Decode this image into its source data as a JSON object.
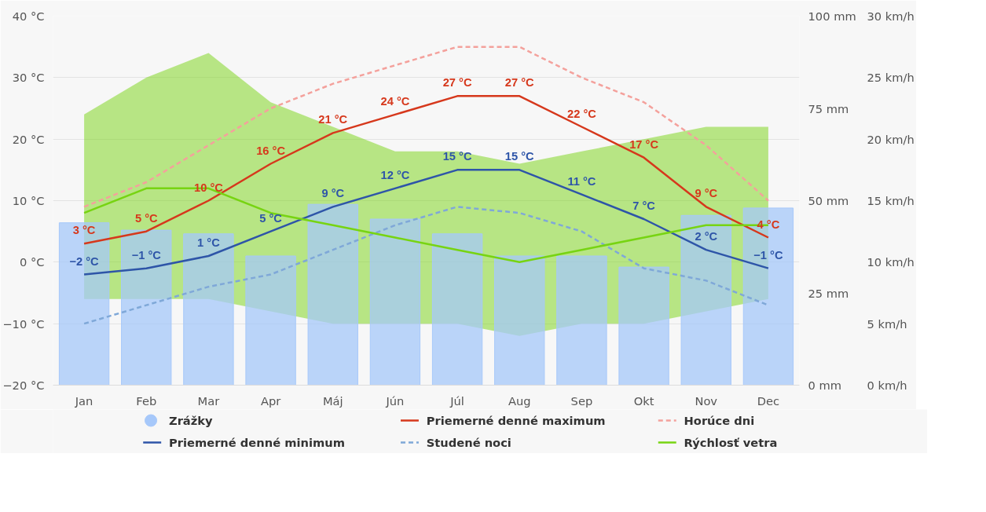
{
  "chart_data": {
    "type": "line",
    "categories": [
      "Jan",
      "Feb",
      "Mar",
      "Apr",
      "Máj",
      "Jún",
      "Júl",
      "Aug",
      "Sep",
      "Okt",
      "Nov",
      "Dec"
    ],
    "ylim": [
      -20,
      40
    ],
    "yticks": [
      {
        "value": -20,
        "label": "−20 °C"
      },
      {
        "value": -10,
        "label": "−10 °C"
      },
      {
        "value": 0,
        "label": "0 °C"
      },
      {
        "value": 10,
        "label": "10 °C"
      },
      {
        "value": 20,
        "label": "20 °C"
      },
      {
        "value": 30,
        "label": "30 °C"
      },
      {
        "value": 40,
        "label": "40 °C"
      }
    ],
    "y2lim": [
      0,
      100
    ],
    "y2ticks": [
      {
        "value": 0,
        "label": "0 mm"
      },
      {
        "value": 25,
        "label": "25 mm"
      },
      {
        "value": 50,
        "label": "50 mm"
      },
      {
        "value": 75,
        "label": "75 mm"
      },
      {
        "value": 100,
        "label": "100 mm"
      }
    ],
    "y3lim": [
      0,
      30
    ],
    "y3ticks": [
      {
        "value": 0,
        "label": "0 km/h"
      },
      {
        "value": 5,
        "label": "5 km/h"
      },
      {
        "value": 10,
        "label": "10 km/h"
      },
      {
        "value": 15,
        "label": "15 km/h"
      },
      {
        "value": 20,
        "label": "20 km/h"
      },
      {
        "value": 25,
        "label": "25 km/h"
      },
      {
        "value": 30,
        "label": "30 km/h"
      }
    ],
    "grid": "y",
    "legend": "bottom",
    "series": [
      {
        "name": "Zrážky",
        "type": "bar",
        "axis": "y2",
        "color": "#a6c8fa",
        "values": [
          44,
          42,
          41,
          35,
          49,
          45,
          41,
          35,
          35,
          32,
          46,
          48
        ]
      },
      {
        "name": "Priemerné denné maximum",
        "color": "#d6381c",
        "line_style": "solid",
        "values": [
          3,
          5,
          10,
          16,
          21,
          24,
          27,
          27,
          22,
          17,
          9,
          4
        ],
        "value_labels": [
          "3 °C",
          "5 °C",
          "10 °C",
          "16 °C",
          "21 °C",
          "24 °C",
          "27 °C",
          "27 °C",
          "22 °C",
          "17 °C",
          "9 °C",
          "4 °C"
        ]
      },
      {
        "name": "Horúce dni",
        "color": "#f4a19c",
        "line_style": "dashed",
        "values": [
          9,
          13,
          19,
          25,
          29,
          32,
          35,
          35,
          30,
          26,
          19,
          10
        ]
      },
      {
        "name": "Priemerné denné minimum",
        "color": "#2e55a8",
        "line_style": "solid",
        "values": [
          -2,
          -1,
          1,
          5,
          9,
          12,
          15,
          15,
          11,
          7,
          2,
          -1
        ],
        "value_labels": [
          "−2 °C",
          "−1 °C",
          "1 °C",
          "5 °C",
          "9 °C",
          "12 °C",
          "15 °C",
          "15 °C",
          "11 °C",
          "7 °C",
          "2 °C",
          "−1 °C"
        ]
      },
      {
        "name": "Studené noci",
        "color": "#7fa8d8",
        "line_style": "dashed",
        "values": [
          -10,
          -7,
          -4,
          -2,
          2,
          6,
          9,
          8,
          5,
          -1,
          -3,
          -7
        ]
      },
      {
        "name": "Rýchlosť vetra",
        "axis": "y3",
        "color": "#77d412",
        "line_style": "solid",
        "values": [
          14,
          16,
          16,
          14,
          13,
          12,
          11,
          10,
          11,
          12,
          13,
          13
        ],
        "lower": [
          7,
          7,
          7,
          6,
          5,
          5,
          5,
          4,
          5,
          5,
          6,
          7
        ],
        "upper": [
          22,
          25,
          27,
          23,
          21,
          19,
          19,
          18,
          19,
          20,
          21,
          21
        ]
      }
    ]
  }
}
